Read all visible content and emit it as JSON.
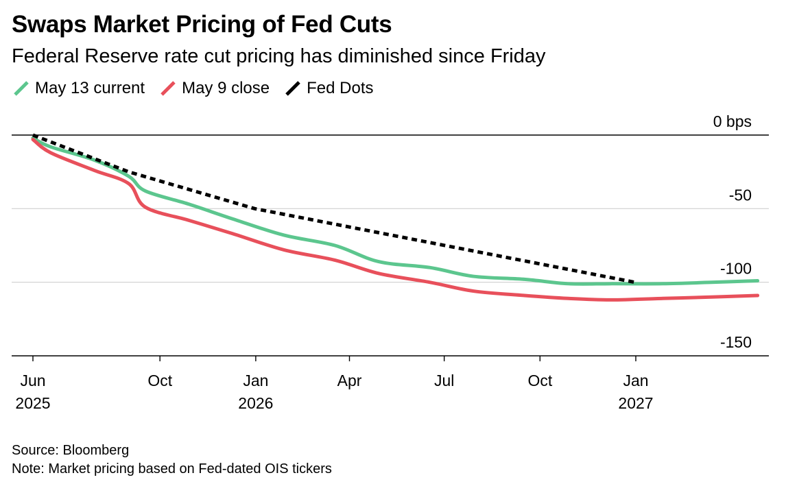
{
  "header": {
    "title": "Swaps Market Pricing of Fed Cuts",
    "subtitle": "Federal Reserve rate cut pricing has diminished since Friday"
  },
  "legend": [
    {
      "label": "May 13 current",
      "color": "#5cc68e",
      "icon": "slash-line-icon"
    },
    {
      "label": "May 9 close",
      "color": "#e8505b",
      "icon": "slash-line-icon"
    },
    {
      "label": "Fed Dots",
      "color": "#000000",
      "icon": "slash-line-icon"
    }
  ],
  "footer": {
    "source": "Source: Bloomberg",
    "note": "Note: Market pricing based on Fed-dated OIS tickers"
  },
  "chart_data": {
    "type": "line",
    "title": "Swaps Market Pricing of Fed Cuts",
    "subtitle": "Federal Reserve rate cut pricing has diminished since Friday",
    "xlabel": "",
    "ylabel": "",
    "x_axis": {
      "type": "date",
      "ticks": [
        {
          "date": "2025-06-01",
          "label": [
            "Jun",
            "2025"
          ]
        },
        {
          "date": "2025-10-01",
          "label": [
            "Oct"
          ]
        },
        {
          "date": "2026-01-01",
          "label": [
            "Jan",
            "2026"
          ]
        },
        {
          "date": "2026-04-01",
          "label": [
            "Apr"
          ]
        },
        {
          "date": "2026-07-01",
          "label": [
            "Jul"
          ]
        },
        {
          "date": "2026-10-01",
          "label": [
            "Oct"
          ]
        },
        {
          "date": "2027-01-01",
          "label": [
            "Jan",
            "2027"
          ]
        }
      ],
      "range": [
        "2025-05-10",
        "2027-05-31"
      ]
    },
    "y_axis": {
      "ticks": [
        {
          "value": 0,
          "label": "0 bps"
        },
        {
          "value": -50,
          "label": "-50"
        },
        {
          "value": -100,
          "label": "-100"
        },
        {
          "value": -150,
          "label": "-150"
        }
      ],
      "range": [
        -150,
        0
      ],
      "position": "right"
    },
    "grid": true,
    "legend_position": "top-left",
    "series": [
      {
        "name": "May 13 current",
        "color": "#5cc68e",
        "style": "solid",
        "points": [
          [
            "2025-06-01",
            -2
          ],
          [
            "2025-06-18",
            -8
          ],
          [
            "2025-07-30",
            -17
          ],
          [
            "2025-09-01",
            -28
          ],
          [
            "2025-09-17",
            -38
          ],
          [
            "2025-10-29",
            -47
          ],
          [
            "2025-12-10",
            -57
          ],
          [
            "2026-01-28",
            -68
          ],
          [
            "2026-03-18",
            -75
          ],
          [
            "2026-04-29",
            -86
          ],
          [
            "2026-06-17",
            -90
          ],
          [
            "2026-07-29",
            -96
          ],
          [
            "2026-09-16",
            -98
          ],
          [
            "2026-10-28",
            -101
          ],
          [
            "2026-12-09",
            -101
          ],
          [
            "2027-01-27",
            -101
          ],
          [
            "2027-03-17",
            -100
          ],
          [
            "2027-04-28",
            -99
          ]
        ]
      },
      {
        "name": "May 9 close",
        "color": "#e8505b",
        "style": "solid",
        "points": [
          [
            "2025-06-01",
            -3
          ],
          [
            "2025-06-18",
            -12
          ],
          [
            "2025-07-30",
            -24
          ],
          [
            "2025-09-01",
            -33
          ],
          [
            "2025-09-17",
            -49
          ],
          [
            "2025-10-29",
            -58
          ],
          [
            "2025-12-10",
            -67
          ],
          [
            "2026-01-28",
            -78
          ],
          [
            "2026-03-18",
            -85
          ],
          [
            "2026-04-29",
            -94
          ],
          [
            "2026-06-17",
            -100
          ],
          [
            "2026-07-29",
            -106
          ],
          [
            "2026-09-16",
            -109
          ],
          [
            "2026-10-28",
            -111
          ],
          [
            "2026-12-09",
            -112
          ],
          [
            "2027-01-27",
            -111
          ],
          [
            "2027-03-17",
            -110
          ],
          [
            "2027-04-28",
            -109
          ]
        ]
      },
      {
        "name": "Fed Dots",
        "color": "#000000",
        "style": "dashed",
        "points": [
          [
            "2025-06-01",
            0
          ],
          [
            "2025-09-01",
            -25
          ],
          [
            "2025-12-31",
            -50
          ],
          [
            "2026-12-31",
            -100
          ]
        ]
      }
    ]
  }
}
